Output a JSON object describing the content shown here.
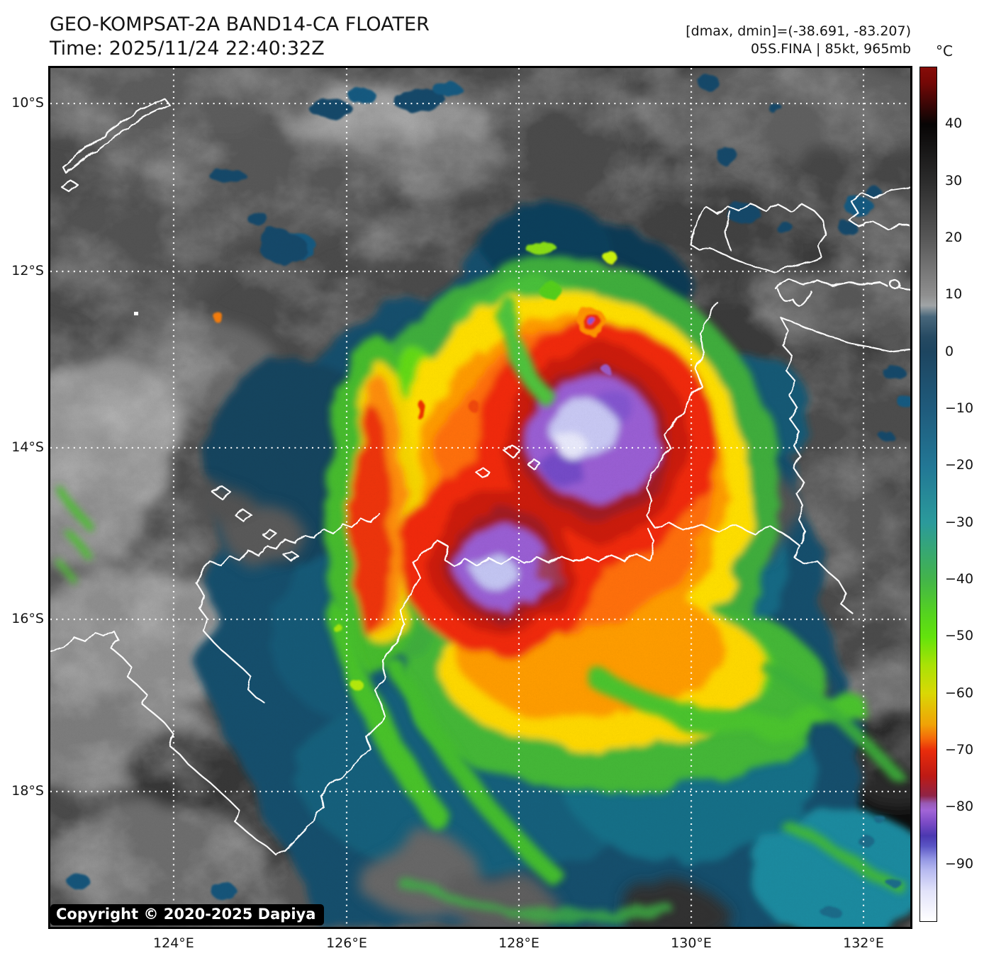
{
  "header": {
    "title": "GEO-KOMPSAT-2A BAND14-CA FLOATER",
    "time": "Time: 2025/11/24 22:40:32Z",
    "annotation1": "[dmax, dmin]=(-38.691, -83.207)",
    "annotation2": "05S.FINA | 85kt, 965mb"
  },
  "colorbar": {
    "unit": "°C",
    "ticks": [
      {
        "label": "40",
        "pos": 0.0667
      },
      {
        "label": "30",
        "pos": 0.1333
      },
      {
        "label": "20",
        "pos": 0.2
      },
      {
        "label": "10",
        "pos": 0.2667
      },
      {
        "label": "0",
        "pos": 0.3333
      },
      {
        "label": "−10",
        "pos": 0.4
      },
      {
        "label": "−20",
        "pos": 0.4667
      },
      {
        "label": "−30",
        "pos": 0.5333
      },
      {
        "label": "−40",
        "pos": 0.6
      },
      {
        "label": "−50",
        "pos": 0.6667
      },
      {
        "label": "−60",
        "pos": 0.7333
      },
      {
        "label": "−70",
        "pos": 0.8
      },
      {
        "label": "−80",
        "pos": 0.8667
      },
      {
        "label": "−90",
        "pos": 0.9333
      }
    ],
    "gradient": [
      [
        0.0,
        "#870c08"
      ],
      [
        0.018,
        "#740806"
      ],
      [
        0.067,
        "#070505"
      ],
      [
        0.133,
        "#2b2b2b"
      ],
      [
        0.2,
        "#575757"
      ],
      [
        0.267,
        "#8f8f8f"
      ],
      [
        0.279,
        "#a0a4a6"
      ],
      [
        0.292,
        "#48677b"
      ],
      [
        0.316,
        "#264a62"
      ],
      [
        0.333,
        "#1d4560"
      ],
      [
        0.4,
        "#1f5b7c"
      ],
      [
        0.467,
        "#227795"
      ],
      [
        0.533,
        "#2b9a9b"
      ],
      [
        0.6,
        "#43b44a"
      ],
      [
        0.64,
        "#55d31f"
      ],
      [
        0.667,
        "#63e30c"
      ],
      [
        0.7,
        "#a9e206"
      ],
      [
        0.733,
        "#d9d805"
      ],
      [
        0.77,
        "#f0a207"
      ],
      [
        0.786,
        "#f4690a"
      ],
      [
        0.8,
        "#e92c0b"
      ],
      [
        0.83,
        "#bd1a15"
      ],
      [
        0.853,
        "#8f2446"
      ],
      [
        0.862,
        "#985ab4"
      ],
      [
        0.87,
        "#a265d7"
      ],
      [
        0.885,
        "#7a4ac5"
      ],
      [
        0.9,
        "#4b38b0"
      ],
      [
        0.912,
        "#5a55c4"
      ],
      [
        0.927,
        "#9295e3"
      ],
      [
        0.94,
        "#b6b9f0"
      ],
      [
        0.965,
        "#e2e3fa"
      ],
      [
        1.0,
        "#ffffff"
      ]
    ]
  },
  "map": {
    "copyright": "Copyright © 2020-2025 Dapiya",
    "x_ticks": [
      {
        "label": "124°E",
        "pos": 0.1434
      },
      {
        "label": "126°E",
        "pos": 0.3446
      },
      {
        "label": "128°E",
        "pos": 0.5449
      },
      {
        "label": "130°E",
        "pos": 0.7453
      },
      {
        "label": "132°E",
        "pos": 0.9456
      }
    ],
    "y_ticks": [
      {
        "label": "10°S",
        "pos": 0.0413
      },
      {
        "label": "12°S",
        "pos": 0.2368
      },
      {
        "label": "14°S",
        "pos": 0.4422
      },
      {
        "label": "16°S",
        "pos": 0.6419
      },
      {
        "label": "18°S",
        "pos": 0.8424
      }
    ],
    "palette": {
      "warm_gray": "#8f8f8f",
      "cold_navy": "#14506d",
      "cold_teal": "#1d7089",
      "cold_green": "#3fae3e",
      "cold_yellow": "#ffdf04",
      "cold_orange": "#ff9b06",
      "cold_red": "#f12c08",
      "cold_purple": "#9a5fd4",
      "cold_lavender": "#c9c9f4",
      "coastline": "#ffffff",
      "gridline": "#ffffff"
    }
  }
}
